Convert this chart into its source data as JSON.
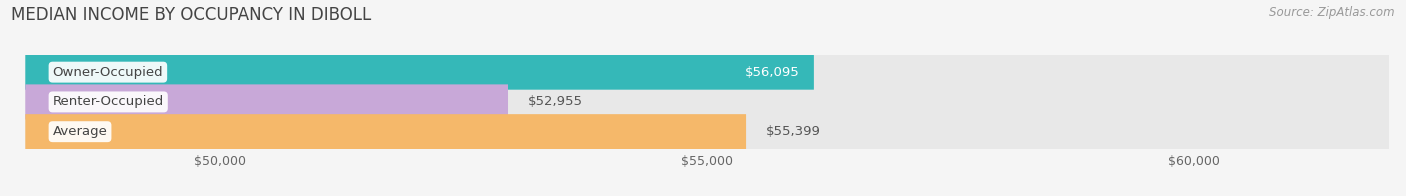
{
  "title": "MEDIAN INCOME BY OCCUPANCY IN DIBOLL",
  "source": "Source: ZipAtlas.com",
  "categories": [
    "Owner-Occupied",
    "Renter-Occupied",
    "Average"
  ],
  "values": [
    56095,
    52955,
    55399
  ],
  "bar_colors": [
    "#35b8b8",
    "#c8a8d8",
    "#f5b86a"
  ],
  "bar_bg_color": "#e8e8e8",
  "value_label_inside": [
    true,
    false,
    false
  ],
  "xlim_min": 48000,
  "xlim_max": 62000,
  "xticks": [
    50000,
    55000,
    60000
  ],
  "xtick_labels": [
    "$50,000",
    "$55,000",
    "$60,000"
  ],
  "bar_height": 0.62,
  "bar_gap": 0.38,
  "title_fontsize": 12,
  "source_fontsize": 8.5,
  "label_fontsize": 9.5,
  "tick_fontsize": 9,
  "cat_fontsize": 9.5,
  "bg_color": "#f5f5f5"
}
